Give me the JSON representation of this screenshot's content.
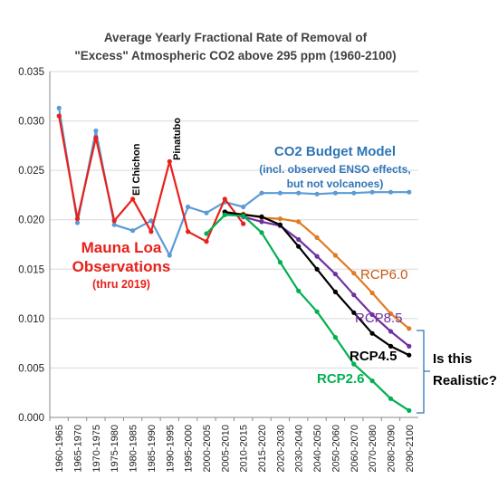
{
  "chart_data": {
    "type": "line",
    "title_lines": [
      "Average Yearly Fractional Rate of Removal of",
      "\"Excess\" Atmospheric CO2 above 295 ppm (1960-2100)"
    ],
    "xlabel": "",
    "ylabel": "",
    "ylim": [
      0,
      0.035
    ],
    "yticks": [
      "0.000",
      "0.005",
      "0.010",
      "0.015",
      "0.020",
      "0.025",
      "0.030",
      "0.035"
    ],
    "grid": true,
    "categories": [
      "1960-1965",
      "1965-1970",
      "1970-1975",
      "1975-1980",
      "1980-1985",
      "1985-1990",
      "1990-1995",
      "1995-2000",
      "2000-2005",
      "2005-2010",
      "2010-2015",
      "2015-2020",
      "2020-2030",
      "2030-2040",
      "2040-2050",
      "2050-2060",
      "2060-2070",
      "2070-2080",
      "2080-2090",
      "2090-2100"
    ],
    "series": [
      {
        "name": "CO2 Budget Model",
        "color": "#5b9bd5",
        "values": [
          0.0313,
          0.0197,
          0.029,
          0.0195,
          0.0189,
          0.0199,
          0.0164,
          0.0213,
          0.0207,
          0.0218,
          0.0213,
          0.0227,
          0.0227,
          0.0227,
          0.0226,
          0.0227,
          0.0227,
          0.0228,
          0.0228,
          0.0228
        ]
      },
      {
        "name": "Mauna Loa Observations",
        "color": "#e8211a",
        "values": [
          0.0305,
          0.0201,
          0.0283,
          0.0199,
          0.0221,
          0.0188,
          0.0259,
          0.0188,
          0.0178,
          0.0221,
          0.0196,
          null,
          null,
          null,
          null,
          null,
          null,
          null,
          null,
          null
        ]
      },
      {
        "name": "RCP6.0",
        "color": "#e07b24",
        "values": [
          null,
          null,
          null,
          null,
          null,
          null,
          null,
          null,
          null,
          0.0206,
          0.0206,
          0.0202,
          0.0201,
          0.0198,
          0.0182,
          0.0164,
          0.0146,
          0.0126,
          0.0105,
          0.009
        ]
      },
      {
        "name": "RCP8.5",
        "color": "#7030a0",
        "values": [
          null,
          null,
          null,
          null,
          null,
          null,
          null,
          null,
          null,
          0.0208,
          0.0203,
          0.0198,
          0.0194,
          0.018,
          0.0163,
          0.0145,
          0.0124,
          0.0104,
          0.0087,
          0.0072
        ]
      },
      {
        "name": "RCP4.5",
        "color": "#000000",
        "values": [
          null,
          null,
          null,
          null,
          null,
          null,
          null,
          null,
          null,
          0.0208,
          0.0205,
          0.0203,
          0.0195,
          0.0173,
          0.015,
          0.0127,
          0.0106,
          0.0085,
          0.0072,
          0.0063
        ]
      },
      {
        "name": "RCP2.6",
        "color": "#00b050",
        "values": [
          null,
          null,
          null,
          null,
          null,
          null,
          null,
          null,
          0.0186,
          0.0205,
          0.0204,
          0.0187,
          0.0157,
          0.0128,
          0.0107,
          0.0081,
          0.0054,
          0.0037,
          0.0019,
          0.0007
        ]
      }
    ],
    "annotations": {
      "el_chichon": "El Chichon",
      "pinatubo": "Pinatubo",
      "model_title": "CO2 Budget Model",
      "model_sub1": "(incl. observed ENSO effects,",
      "model_sub2": "but not volcanoes)",
      "obs_line1": "Mauna Loa",
      "obs_line2": "Observations",
      "obs_line3": "(thru 2019)",
      "rcp60": "RCP6.0",
      "rcp85": "RCP8.5",
      "rcp45": "RCP4.5",
      "rcp26": "RCP2.6",
      "question1": "Is this",
      "question2": "Realistic?"
    },
    "colors": {
      "model": "#2e75b6",
      "obs": "#e8211a",
      "rcp60": "#c55a11",
      "rcp85": "#7030a0",
      "rcp45": "#000000",
      "rcp26": "#00b050",
      "bracket": "#2e75b6"
    }
  }
}
